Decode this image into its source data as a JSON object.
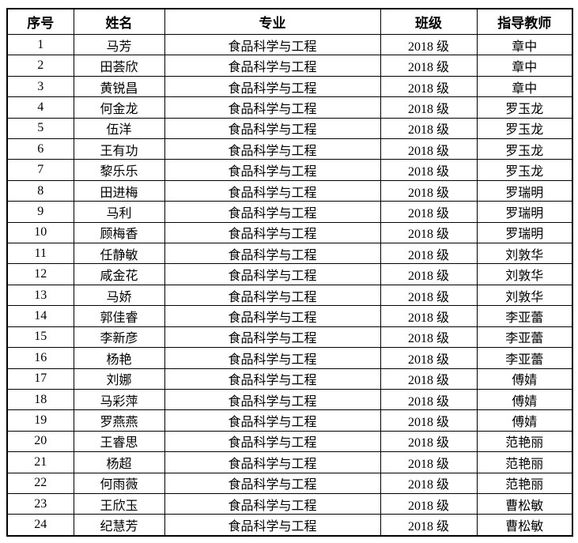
{
  "table": {
    "columns": [
      {
        "key": "no",
        "label": "序号"
      },
      {
        "key": "name",
        "label": "姓名"
      },
      {
        "key": "major",
        "label": "专业"
      },
      {
        "key": "class",
        "label": "班级"
      },
      {
        "key": "teacher",
        "label": "指导教师"
      }
    ],
    "rows": [
      {
        "no": "1",
        "name": "马芳",
        "major": "食品科学与工程",
        "class": "2018 级",
        "teacher": "章中"
      },
      {
        "no": "2",
        "name": "田荟欣",
        "major": "食品科学与工程",
        "class": "2018 级",
        "teacher": "章中"
      },
      {
        "no": "3",
        "name": "黄锐昌",
        "major": "食品科学与工程",
        "class": "2018 级",
        "teacher": "章中"
      },
      {
        "no": "4",
        "name": "何金龙",
        "major": "食品科学与工程",
        "class": "2018 级",
        "teacher": "罗玉龙"
      },
      {
        "no": "5",
        "name": "伍洋",
        "major": "食品科学与工程",
        "class": "2018 级",
        "teacher": "罗玉龙"
      },
      {
        "no": "6",
        "name": "王有功",
        "major": "食品科学与工程",
        "class": "2018 级",
        "teacher": "罗玉龙"
      },
      {
        "no": "7",
        "name": "黎乐乐",
        "major": "食品科学与工程",
        "class": "2018 级",
        "teacher": "罗玉龙"
      },
      {
        "no": "8",
        "name": "田进梅",
        "major": "食品科学与工程",
        "class": "2018 级",
        "teacher": "罗瑞明"
      },
      {
        "no": "9",
        "name": "马利",
        "major": "食品科学与工程",
        "class": "2018 级",
        "teacher": "罗瑞明"
      },
      {
        "no": "10",
        "name": "顾梅香",
        "major": "食品科学与工程",
        "class": "2018 级",
        "teacher": "罗瑞明"
      },
      {
        "no": "11",
        "name": "任静敏",
        "major": "食品科学与工程",
        "class": "2018 级",
        "teacher": "刘敦华"
      },
      {
        "no": "12",
        "name": "咸金花",
        "major": "食品科学与工程",
        "class": "2018 级",
        "teacher": "刘敦华"
      },
      {
        "no": "13",
        "name": "马娇",
        "major": "食品科学与工程",
        "class": "2018 级",
        "teacher": "刘敦华"
      },
      {
        "no": "14",
        "name": "郭佳睿",
        "major": "食品科学与工程",
        "class": "2018 级",
        "teacher": "李亚蕾"
      },
      {
        "no": "15",
        "name": "李新彦",
        "major": "食品科学与工程",
        "class": "2018 级",
        "teacher": "李亚蕾"
      },
      {
        "no": "16",
        "name": "杨艳",
        "major": "食品科学与工程",
        "class": "2018 级",
        "teacher": "李亚蕾"
      },
      {
        "no": "17",
        "name": "刘娜",
        "major": "食品科学与工程",
        "class": "2018 级",
        "teacher": "傅婧"
      },
      {
        "no": "18",
        "name": "马彩萍",
        "major": "食品科学与工程",
        "class": "2018 级",
        "teacher": "傅婧"
      },
      {
        "no": "19",
        "name": "罗燕燕",
        "major": "食品科学与工程",
        "class": "2018 级",
        "teacher": "傅婧"
      },
      {
        "no": "20",
        "name": "王睿思",
        "major": "食品科学与工程",
        "class": "2018 级",
        "teacher": "范艳丽"
      },
      {
        "no": "21",
        "name": "杨超",
        "major": "食品科学与工程",
        "class": "2018 级",
        "teacher": "范艳丽"
      },
      {
        "no": "22",
        "name": "何雨薇",
        "major": "食品科学与工程",
        "class": "2018 级",
        "teacher": "范艳丽"
      },
      {
        "no": "23",
        "name": "王欣玉",
        "major": "食品科学与工程",
        "class": "2018 级",
        "teacher": "曹松敏"
      },
      {
        "no": "24",
        "name": "纪慧芳",
        "major": "食品科学与工程",
        "class": "2018 级",
        "teacher": "曹松敏"
      }
    ]
  }
}
